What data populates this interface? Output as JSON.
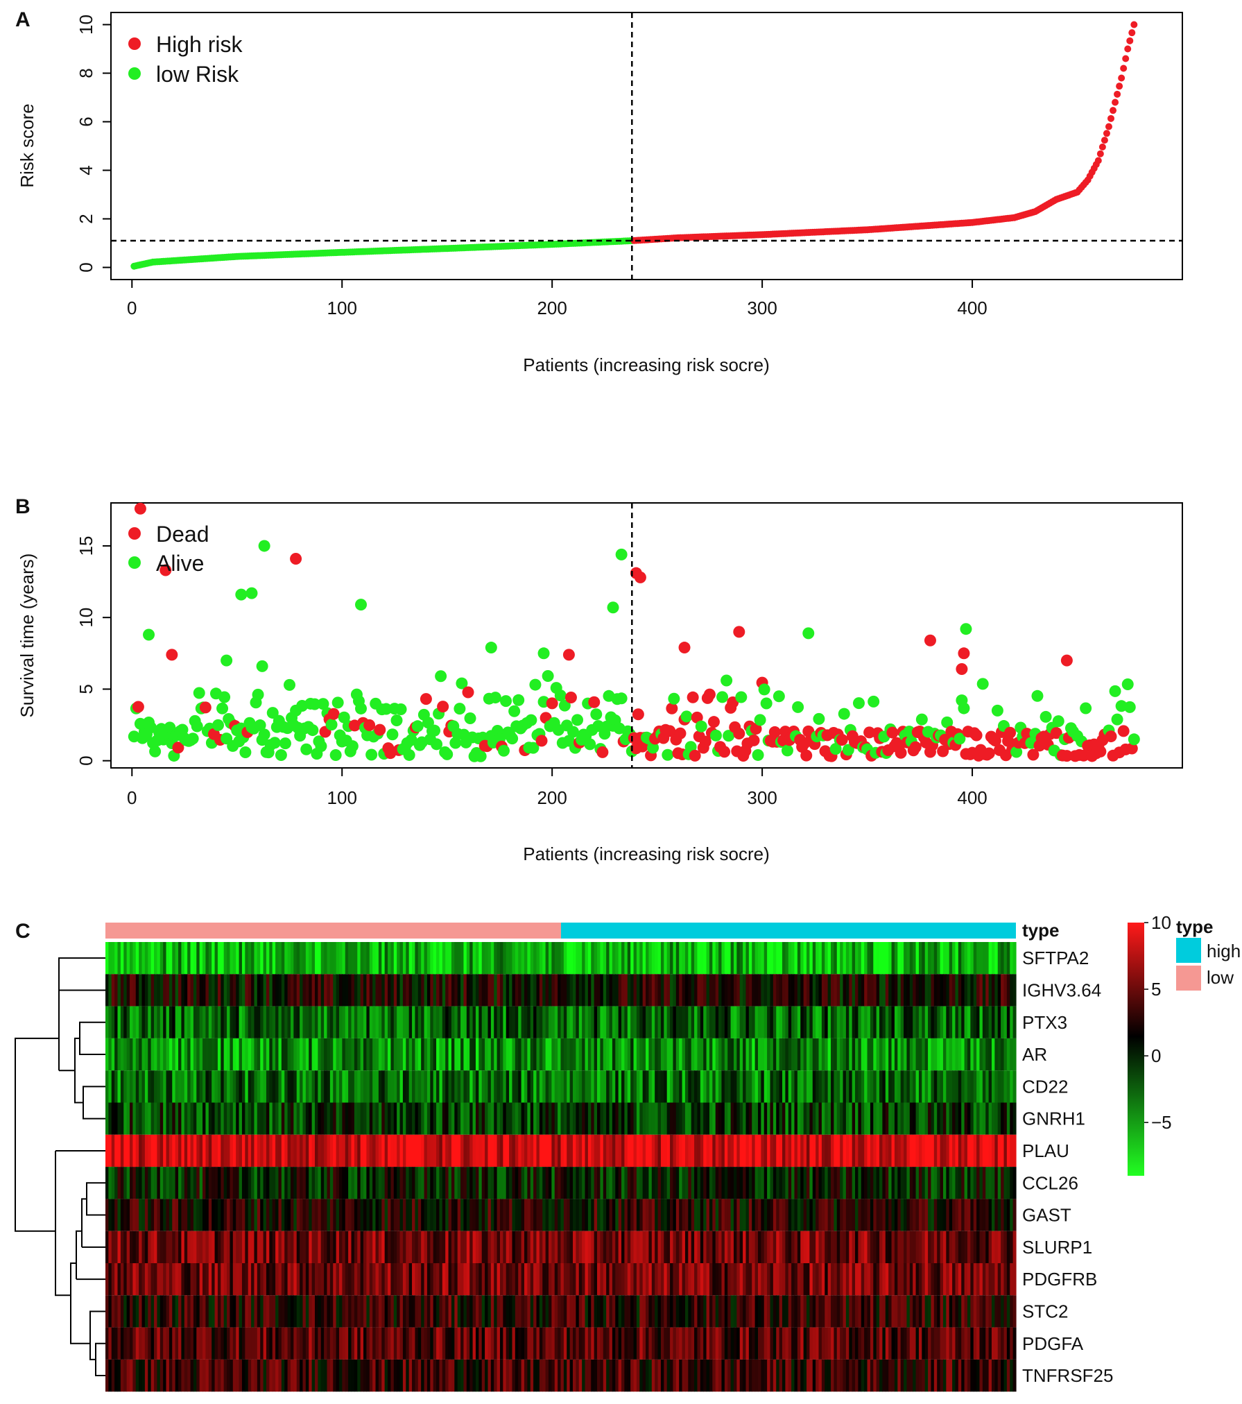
{
  "chart_data": [
    {
      "panel": "A",
      "type": "scatter",
      "xlabel": "Patients (increasing risk socre)",
      "ylabel": "Risk score",
      "xlim": [
        -10,
        500
      ],
      "ylim": [
        -0.5,
        10.5
      ],
      "x_ticks": [
        "0",
        "100",
        "200",
        "300",
        "400"
      ],
      "y_ticks": [
        "0",
        "2",
        "4",
        "6",
        "8",
        "10"
      ],
      "cutoff_index": 238,
      "cutoff_score": 1.1,
      "legend": [
        {
          "label": "High risk",
          "color": "#ee1c25"
        },
        {
          "label": "low Risk",
          "color": "#22ee22"
        }
      ],
      "n_patients": 477,
      "curve_knots": {
        "x": [
          1,
          10,
          50,
          100,
          150,
          200,
          238,
          260,
          300,
          350,
          400,
          420,
          430,
          440,
          450,
          455,
          460,
          465,
          468,
          471,
          474,
          477
        ],
        "risk": [
          0.05,
          0.22,
          0.45,
          0.62,
          0.78,
          0.95,
          1.1,
          1.22,
          1.35,
          1.55,
          1.85,
          2.05,
          2.3,
          2.8,
          3.1,
          3.6,
          4.4,
          5.8,
          6.8,
          7.8,
          9.0,
          10.0
        ]
      }
    },
    {
      "panel": "B",
      "type": "scatter",
      "xlabel": "Patients (increasing risk socre)",
      "ylabel": "Survival time (years)",
      "xlim": [
        -10,
        500
      ],
      "ylim": [
        -0.5,
        18.0
      ],
      "x_ticks": [
        "0",
        "100",
        "200",
        "300",
        "400"
      ],
      "y_ticks": [
        "0",
        "5",
        "10",
        "15"
      ],
      "cutoff_index": 238,
      "legend": [
        {
          "label": "Dead",
          "color": "#ee1c25"
        },
        {
          "label": "Alive",
          "color": "#22ee22"
        }
      ],
      "highlighted_points": [
        {
          "x": 4,
          "y": 17.6,
          "status": "Dead"
        },
        {
          "x": 16,
          "y": 13.3,
          "status": "Dead"
        },
        {
          "x": 78,
          "y": 14.1,
          "status": "Dead"
        },
        {
          "x": 63,
          "y": 15.0,
          "status": "Alive"
        },
        {
          "x": 52,
          "y": 11.6,
          "status": "Alive"
        },
        {
          "x": 57,
          "y": 11.7,
          "status": "Alive"
        },
        {
          "x": 109,
          "y": 10.9,
          "status": "Alive"
        },
        {
          "x": 233,
          "y": 14.4,
          "status": "Alive"
        },
        {
          "x": 229,
          "y": 10.7,
          "status": "Alive"
        },
        {
          "x": 240,
          "y": 13.1,
          "status": "Dead"
        },
        {
          "x": 242,
          "y": 12.8,
          "status": "Dead"
        },
        {
          "x": 8,
          "y": 8.8,
          "status": "Alive"
        },
        {
          "x": 19,
          "y": 7.4,
          "status": "Dead"
        },
        {
          "x": 171,
          "y": 7.9,
          "status": "Alive"
        },
        {
          "x": 196,
          "y": 7.5,
          "status": "Alive"
        },
        {
          "x": 208,
          "y": 7.4,
          "status": "Dead"
        },
        {
          "x": 263,
          "y": 7.9,
          "status": "Dead"
        },
        {
          "x": 289,
          "y": 9.0,
          "status": "Dead"
        },
        {
          "x": 322,
          "y": 8.9,
          "status": "Alive"
        },
        {
          "x": 380,
          "y": 8.4,
          "status": "Dead"
        },
        {
          "x": 397,
          "y": 9.2,
          "status": "Alive"
        },
        {
          "x": 396,
          "y": 7.5,
          "status": "Dead"
        },
        {
          "x": 395,
          "y": 6.4,
          "status": "Dead"
        },
        {
          "x": 445,
          "y": 7.0,
          "status": "Dead"
        },
        {
          "x": 45,
          "y": 7.0,
          "status": "Alive"
        },
        {
          "x": 62,
          "y": 6.6,
          "status": "Alive"
        }
      ]
    },
    {
      "panel": "C",
      "type": "heatmap",
      "annotation_label": "type",
      "genes": [
        "SFTPA2",
        "IGHV3.64",
        "PTX3",
        "AR",
        "CD22",
        "GNRH1",
        "PLAU",
        "CCL26",
        "GAST",
        "SLURP1",
        "PDGFRB",
        "STC2",
        "PDGFA",
        "TNFRSF25"
      ],
      "gene_mean_level": [
        -6.5,
        0.5,
        -3.5,
        -5.0,
        -4.0,
        -2.0,
        7.5,
        -1.0,
        1.0,
        4.0,
        4.0,
        1.5,
        3.0,
        2.0
      ],
      "colorbar_ticks": [
        "10",
        "5",
        "0",
        "−5"
      ],
      "colorbar_range": [
        -9,
        10
      ],
      "legend_title": "type",
      "legend": [
        {
          "label": "high",
          "color": "#00ccdd"
        },
        {
          "label": "low",
          "color": "#f59893"
        }
      ],
      "group_split_fraction": 0.5
    }
  ],
  "panel_labels": {
    "a": "A",
    "b": "B",
    "c": "C"
  }
}
